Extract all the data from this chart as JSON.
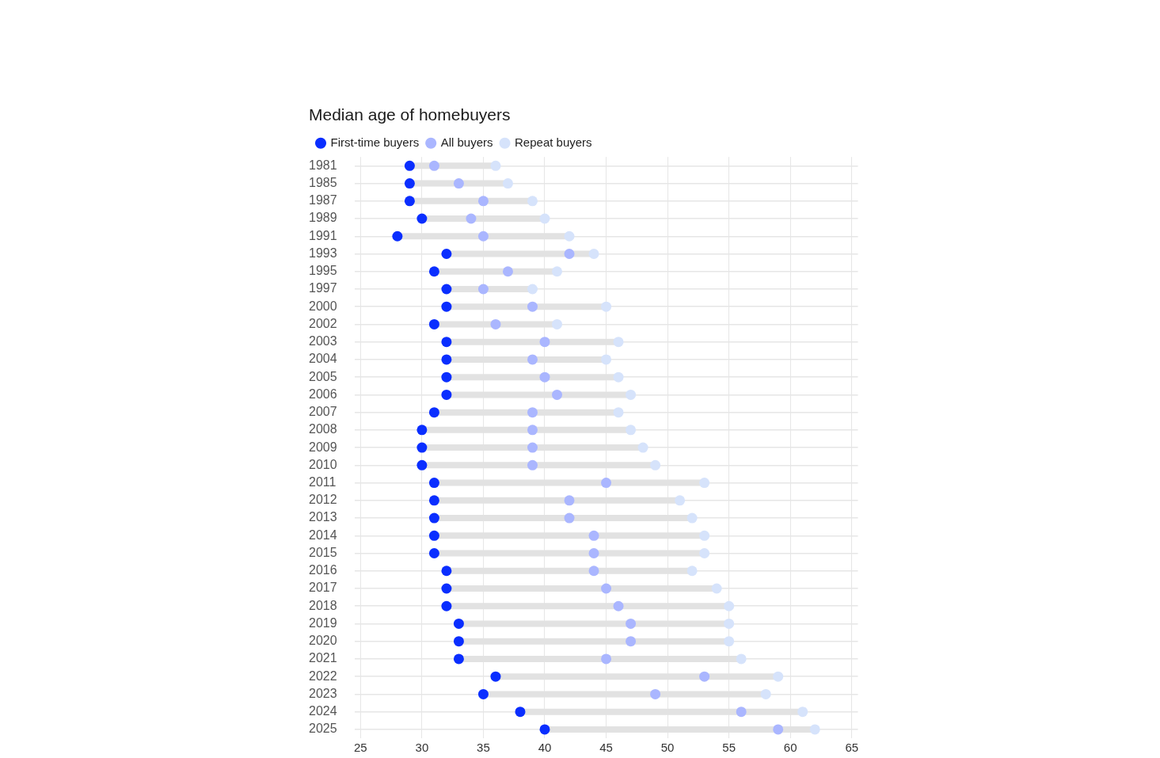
{
  "chart_data": {
    "type": "scatter",
    "orientation": "horizontal",
    "title": "Median age of homebuyers",
    "categories": [
      "1981",
      "1985",
      "1987",
      "1989",
      "1991",
      "1993",
      "1995",
      "1997",
      "2000",
      "2002",
      "2003",
      "2004",
      "2005",
      "2006",
      "2007",
      "2008",
      "2009",
      "2010",
      "2011",
      "2012",
      "2013",
      "2014",
      "2015",
      "2016",
      "2017",
      "2018",
      "2019",
      "2020",
      "2021",
      "2022",
      "2023",
      "2024",
      "2025"
    ],
    "series": [
      {
        "name": "First-time buyers",
        "color": "#0a2eff",
        "values": [
          29,
          29,
          29,
          30,
          28,
          32,
          31,
          32,
          32,
          31,
          32,
          32,
          32,
          32,
          31,
          30,
          30,
          30,
          31,
          31,
          31,
          31,
          31,
          32,
          32,
          32,
          33,
          33,
          33,
          36,
          35,
          38,
          40
        ]
      },
      {
        "name": "All buyers",
        "color": "#aab6ff",
        "values": [
          31,
          33,
          35,
          34,
          35,
          42,
          37,
          35,
          39,
          36,
          40,
          39,
          40,
          41,
          39,
          39,
          39,
          39,
          45,
          42,
          42,
          44,
          44,
          44,
          45,
          46,
          47,
          47,
          45,
          53,
          49,
          56,
          59
        ]
      },
      {
        "name": "Repeat buyers",
        "color": "#d6e3fb",
        "values": [
          36,
          37,
          39,
          40,
          42,
          44,
          41,
          39,
          45,
          41,
          46,
          45,
          46,
          47,
          46,
          47,
          48,
          49,
          53,
          51,
          52,
          53,
          53,
          52,
          54,
          55,
          55,
          55,
          56,
          59,
          58,
          61,
          62
        ]
      }
    ],
    "xlim": [
      24.5,
      65.5
    ],
    "xticks": [
      25,
      30,
      35,
      40,
      45,
      50,
      55,
      60,
      65
    ],
    "grid": true,
    "legend": "top left",
    "marker": "circle"
  }
}
